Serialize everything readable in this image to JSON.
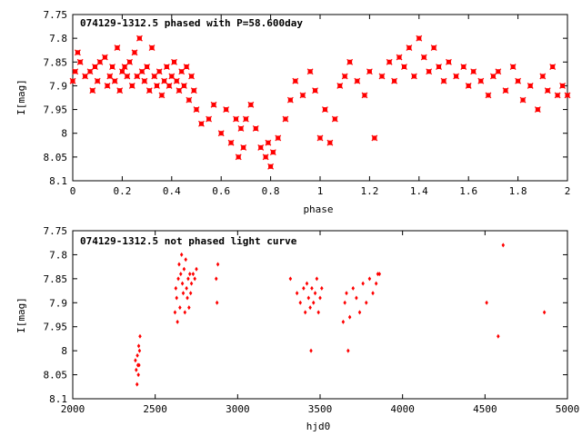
{
  "chart_data": [
    {
      "type": "scatter",
      "title": "074129-1312.5 phased with P=58.600day",
      "xlabel": "phase",
      "ylabel": "I[mag]",
      "xlim": [
        0,
        2
      ],
      "ylim": [
        8.1,
        7.75
      ],
      "y_inverted": true,
      "x_ticks": [
        0,
        0.2,
        0.4,
        0.6,
        0.8,
        1,
        1.2,
        1.4,
        1.6,
        1.8,
        2
      ],
      "y_ticks": [
        7.75,
        7.8,
        7.85,
        7.9,
        7.95,
        8,
        8.05,
        8.1
      ],
      "x_tick_labels": [
        "0",
        "0.2",
        "0.4",
        "0.6",
        "0.8",
        "1",
        "1.2",
        "1.4",
        "1.6",
        "1.8",
        "2"
      ],
      "y_tick_labels": [
        "7.75",
        "7.8",
        "7.85",
        "7.9",
        "7.95",
        "8",
        "8.05",
        "8.1"
      ],
      "marker": "star",
      "color": "#ff0000",
      "points": [
        [
          0.0,
          7.89
        ],
        [
          0.01,
          7.87
        ],
        [
          0.02,
          7.83
        ],
        [
          0.03,
          7.85
        ],
        [
          0.05,
          7.88
        ],
        [
          0.07,
          7.87
        ],
        [
          0.08,
          7.91
        ],
        [
          0.09,
          7.86
        ],
        [
          0.1,
          7.89
        ],
        [
          0.11,
          7.85
        ],
        [
          0.13,
          7.84
        ],
        [
          0.14,
          7.9
        ],
        [
          0.15,
          7.88
        ],
        [
          0.16,
          7.86
        ],
        [
          0.17,
          7.89
        ],
        [
          0.18,
          7.82
        ],
        [
          0.19,
          7.91
        ],
        [
          0.2,
          7.87
        ],
        [
          0.21,
          7.86
        ],
        [
          0.22,
          7.88
        ],
        [
          0.23,
          7.85
        ],
        [
          0.24,
          7.9
        ],
        [
          0.25,
          7.83
        ],
        [
          0.26,
          7.88
        ],
        [
          0.27,
          7.8
        ],
        [
          0.28,
          7.87
        ],
        [
          0.29,
          7.89
        ],
        [
          0.3,
          7.86
        ],
        [
          0.31,
          7.91
        ],
        [
          0.32,
          7.82
        ],
        [
          0.33,
          7.88
        ],
        [
          0.34,
          7.9
        ],
        [
          0.35,
          7.87
        ],
        [
          0.36,
          7.92
        ],
        [
          0.37,
          7.89
        ],
        [
          0.38,
          7.86
        ],
        [
          0.39,
          7.9
        ],
        [
          0.4,
          7.88
        ],
        [
          0.41,
          7.85
        ],
        [
          0.42,
          7.89
        ],
        [
          0.43,
          7.91
        ],
        [
          0.44,
          7.87
        ],
        [
          0.45,
          7.9
        ],
        [
          0.46,
          7.86
        ],
        [
          0.47,
          7.93
        ],
        [
          0.48,
          7.88
        ],
        [
          0.49,
          7.91
        ],
        [
          0.5,
          7.95
        ],
        [
          0.52,
          7.98
        ],
        [
          0.55,
          7.97
        ],
        [
          0.57,
          7.94
        ],
        [
          0.6,
          8.0
        ],
        [
          0.62,
          7.95
        ],
        [
          0.64,
          8.02
        ],
        [
          0.66,
          7.97
        ],
        [
          0.67,
          8.05
        ],
        [
          0.68,
          7.99
        ],
        [
          0.69,
          8.03
        ],
        [
          0.7,
          7.97
        ],
        [
          0.72,
          7.94
        ],
        [
          0.74,
          7.99
        ],
        [
          0.76,
          8.03
        ],
        [
          0.78,
          8.05
        ],
        [
          0.79,
          8.02
        ],
        [
          0.8,
          8.07
        ],
        [
          0.81,
          8.04
        ],
        [
          0.83,
          8.01
        ],
        [
          0.86,
          7.97
        ],
        [
          0.88,
          7.93
        ],
        [
          0.9,
          7.89
        ],
        [
          0.93,
          7.92
        ],
        [
          0.96,
          7.87
        ],
        [
          0.98,
          7.91
        ],
        [
          1.0,
          8.01
        ],
        [
          1.02,
          7.95
        ],
        [
          1.04,
          8.02
        ],
        [
          1.06,
          7.97
        ],
        [
          1.08,
          7.9
        ],
        [
          1.1,
          7.88
        ],
        [
          1.12,
          7.85
        ],
        [
          1.15,
          7.89
        ],
        [
          1.18,
          7.92
        ],
        [
          1.2,
          7.87
        ],
        [
          1.22,
          8.01
        ],
        [
          1.25,
          7.88
        ],
        [
          1.28,
          7.85
        ],
        [
          1.3,
          7.89
        ],
        [
          1.32,
          7.84
        ],
        [
          1.34,
          7.86
        ],
        [
          1.36,
          7.82
        ],
        [
          1.38,
          7.88
        ],
        [
          1.4,
          7.8
        ],
        [
          1.42,
          7.84
        ],
        [
          1.44,
          7.87
        ],
        [
          1.46,
          7.82
        ],
        [
          1.48,
          7.86
        ],
        [
          1.5,
          7.89
        ],
        [
          1.52,
          7.85
        ],
        [
          1.55,
          7.88
        ],
        [
          1.58,
          7.86
        ],
        [
          1.6,
          7.9
        ],
        [
          1.62,
          7.87
        ],
        [
          1.65,
          7.89
        ],
        [
          1.68,
          7.92
        ],
        [
          1.7,
          7.88
        ],
        [
          1.72,
          7.87
        ],
        [
          1.75,
          7.91
        ],
        [
          1.78,
          7.86
        ],
        [
          1.8,
          7.89
        ],
        [
          1.82,
          7.93
        ],
        [
          1.85,
          7.9
        ],
        [
          1.88,
          7.95
        ],
        [
          1.9,
          7.88
        ],
        [
          1.92,
          7.91
        ],
        [
          1.94,
          7.86
        ],
        [
          1.96,
          7.92
        ],
        [
          1.98,
          7.9
        ],
        [
          2.0,
          7.92
        ]
      ]
    },
    {
      "type": "scatter",
      "title": "074129-1312.5 not phased light curve",
      "xlabel": "hjd0",
      "ylabel": "I[mag]",
      "xlim": [
        2000,
        5000
      ],
      "ylim": [
        8.1,
        7.75
      ],
      "y_inverted": true,
      "x_ticks": [
        2000,
        2500,
        3000,
        3500,
        4000,
        4500,
        5000
      ],
      "y_ticks": [
        7.75,
        7.8,
        7.85,
        7.9,
        7.95,
        8,
        8.05,
        8.1
      ],
      "x_tick_labels": [
        "2000",
        "2500",
        "3000",
        "3500",
        "4000",
        "4500",
        "5000"
      ],
      "y_tick_labels": [
        "7.75",
        "7.8",
        "7.85",
        "7.9",
        "7.95",
        "8",
        "8.05",
        "8.1"
      ],
      "marker": "diamond",
      "color": "#ff0000",
      "points": [
        [
          2380,
          8.02
        ],
        [
          2385,
          8.04
        ],
        [
          2390,
          8.07
        ],
        [
          2392,
          8.01
        ],
        [
          2395,
          8.03
        ],
        [
          2398,
          8.05
        ],
        [
          2400,
          7.99
        ],
        [
          2402,
          8.03
        ],
        [
          2405,
          8.0
        ],
        [
          2408,
          7.97
        ],
        [
          2620,
          7.92
        ],
        [
          2625,
          7.87
        ],
        [
          2630,
          7.89
        ],
        [
          2635,
          7.94
        ],
        [
          2640,
          7.85
        ],
        [
          2645,
          7.82
        ],
        [
          2650,
          7.91
        ],
        [
          2655,
          7.84
        ],
        [
          2660,
          7.8
        ],
        [
          2665,
          7.86
        ],
        [
          2670,
          7.88
        ],
        [
          2675,
          7.83
        ],
        [
          2680,
          7.92
        ],
        [
          2685,
          7.81
        ],
        [
          2690,
          7.87
        ],
        [
          2695,
          7.89
        ],
        [
          2700,
          7.85
        ],
        [
          2705,
          7.91
        ],
        [
          2710,
          7.84
        ],
        [
          2715,
          7.88
        ],
        [
          2720,
          7.86
        ],
        [
          2730,
          7.84
        ],
        [
          2740,
          7.85
        ],
        [
          2750,
          7.83
        ],
        [
          2870,
          7.85
        ],
        [
          2875,
          7.9
        ],
        [
          2880,
          7.82
        ],
        [
          3320,
          7.85
        ],
        [
          3360,
          7.88
        ],
        [
          3380,
          7.9
        ],
        [
          3400,
          7.87
        ],
        [
          3410,
          7.92
        ],
        [
          3420,
          7.86
        ],
        [
          3430,
          7.89
        ],
        [
          3440,
          7.91
        ],
        [
          3445,
          8.0
        ],
        [
          3450,
          7.87
        ],
        [
          3460,
          7.9
        ],
        [
          3470,
          7.88
        ],
        [
          3480,
          7.85
        ],
        [
          3490,
          7.92
        ],
        [
          3500,
          7.89
        ],
        [
          3510,
          7.87
        ],
        [
          3640,
          7.94
        ],
        [
          3650,
          7.9
        ],
        [
          3660,
          7.88
        ],
        [
          3670,
          8.0
        ],
        [
          3680,
          7.93
        ],
        [
          3700,
          7.87
        ],
        [
          3720,
          7.89
        ],
        [
          3740,
          7.92
        ],
        [
          3760,
          7.86
        ],
        [
          3780,
          7.9
        ],
        [
          3800,
          7.85
        ],
        [
          3820,
          7.88
        ],
        [
          3840,
          7.86
        ],
        [
          3850,
          7.84
        ],
        [
          3860,
          7.84
        ],
        [
          4510,
          7.9
        ],
        [
          4580,
          7.97
        ],
        [
          4610,
          7.78
        ],
        [
          4860,
          7.92
        ]
      ]
    }
  ]
}
